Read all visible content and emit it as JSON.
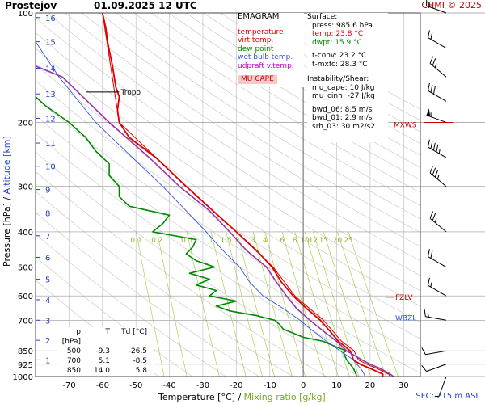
{
  "header": {
    "location": "Prostejov",
    "datetime": "01.09.2025 12 UTC",
    "credit": "CHMI © 2025"
  },
  "legend": {
    "title": "EMAGRAM",
    "items": [
      {
        "label": "temperature",
        "color": "#dd0000"
      },
      {
        "label": "virt.temp.",
        "color": "#dd0000"
      },
      {
        "label": "dew point",
        "color": "#008800"
      },
      {
        "label": "wet bulb temp.",
        "color": "#3355dd"
      },
      {
        "label": "udprafť v.temp.",
        "color": "#cc00cc"
      }
    ],
    "mu_cape_label": "MU CAPE"
  },
  "surface": {
    "title": "Surface:",
    "rows": [
      {
        "text": "press: 985.6 hPa",
        "color": "#000000"
      },
      {
        "text": "temp: 23.8 °C",
        "color": "#dd0000"
      },
      {
        "text": "dwpt: 15.9 °C",
        "color": "#008800"
      },
      {
        "text": "",
        "color": "#000000"
      },
      {
        "text": "t-conv: 23.2 °C",
        "color": "#000000"
      },
      {
        "text": "t-mxfc: 28.3 °C",
        "color": "#000000"
      }
    ],
    "instability_title": "Instability/Shear:",
    "instability_rows": [
      "mu_cape: 10 J/kg",
      "mu_cinh: -27 J/kg",
      "",
      "bwd_06: 8.5 m/s",
      "bwd_01: 2.9 m/s",
      "srh_03: 30 m2/s2"
    ]
  },
  "table": {
    "headers": [
      "p [hPa]",
      "T",
      "Td [°C]"
    ],
    "rows": [
      [
        "500",
        "-9.3",
        "-26.5"
      ],
      [
        "700",
        "5.1",
        "-8.5"
      ],
      [
        "850",
        "14.0",
        "5.8"
      ]
    ]
  },
  "axes": {
    "xlabel_main": "Temperature [°C]",
    "xlabel_sep": "/",
    "xlabel_mix": "Mixing ratio [g/kg]",
    "ylabel_main": "Pressure [hPa]",
    "ylabel_sep": "/",
    "ylabel_alt": "Altitude [km]",
    "sfc_label": "SFC: 215 m ASL"
  },
  "markers": {
    "tropo": "Tropo",
    "mxws": "MXWS",
    "fzlv": "FZLV",
    "wbzl": "WBZL"
  },
  "colors": {
    "temperature": "#dd0000",
    "dewpoint": "#008800",
    "wetbulb": "#3355dd",
    "parcel": "#9933aa",
    "altitude": "#2244cc",
    "mixing": "#99cc33",
    "grid": "#bbbbbb",
    "dry_adiabat": "#cccccc"
  },
  "chart_data": {
    "type": "line",
    "title": "",
    "x_ticks": [
      -70,
      -60,
      -50,
      -40,
      -30,
      -20,
      -10,
      0,
      10,
      20,
      30
    ],
    "xlim": [
      -80,
      35
    ],
    "y_ticks": [
      100,
      200,
      300,
      400,
      500,
      600,
      700,
      850,
      925,
      1000
    ],
    "ylim": [
      1000,
      100
    ],
    "y_scale": "log",
    "altitude_ticks_km": [
      1,
      2,
      3,
      4,
      5,
      6,
      7,
      8,
      9,
      10,
      11,
      12,
      13,
      14,
      15,
      16
    ],
    "altitude_tick_pressures": [
      900,
      795,
      700,
      615,
      540,
      470,
      410,
      355,
      306,
      264,
      228,
      195,
      167,
      142,
      120,
      103
    ],
    "mixing_ratio_labels": [
      "0.1",
      "0.2",
      "0.5",
      "1",
      "1.5",
      "2",
      "3",
      "4",
      "6",
      "8",
      "10",
      "12",
      "15",
      "20",
      "25"
    ],
    "mixing_ratio_values": [
      0.1,
      0.2,
      0.5,
      1,
      1.5,
      2,
      3,
      4,
      6,
      8,
      10,
      12,
      15,
      20,
      25
    ],
    "series": [
      {
        "name": "temperature",
        "points": [
          [
            1000,
            23.8
          ],
          [
            985,
            23.8
          ],
          [
            950,
            20
          ],
          [
            925,
            17
          ],
          [
            900,
            15
          ],
          [
            870,
            14.5
          ],
          [
            850,
            14
          ],
          [
            820,
            12
          ],
          [
            800,
            10.5
          ],
          [
            750,
            8
          ],
          [
            700,
            5.1
          ],
          [
            650,
            1
          ],
          [
            600,
            -3
          ],
          [
            550,
            -6.5
          ],
          [
            500,
            -9.3
          ],
          [
            450,
            -14
          ],
          [
            400,
            -20
          ],
          [
            350,
            -27
          ],
          [
            300,
            -35
          ],
          [
            250,
            -44
          ],
          [
            220,
            -52
          ],
          [
            200,
            -55
          ],
          [
            185,
            -55.5
          ],
          [
            170,
            -55
          ],
          [
            160,
            -56
          ],
          [
            140,
            -57
          ],
          [
            120,
            -58.5
          ],
          [
            110,
            -59
          ],
          [
            100,
            -60
          ]
        ]
      },
      {
        "name": "virt.temp.",
        "points": [
          [
            1000,
            26
          ],
          [
            985,
            25.5
          ],
          [
            950,
            22
          ],
          [
            925,
            19
          ],
          [
            900,
            16.5
          ],
          [
            850,
            15.2
          ],
          [
            800,
            11.5
          ],
          [
            700,
            6
          ],
          [
            600,
            -2.5
          ],
          [
            500,
            -9
          ],
          [
            400,
            -20
          ],
          [
            300,
            -35
          ],
          [
            200,
            -55
          ],
          [
            100,
            -60
          ]
        ]
      },
      {
        "name": "dew point",
        "points": [
          [
            1000,
            15.9
          ],
          [
            985,
            15.8
          ],
          [
            950,
            15
          ],
          [
            925,
            14
          ],
          [
            900,
            13
          ],
          [
            860,
            12
          ],
          [
            850,
            13
          ],
          [
            830,
            10
          ],
          [
            800,
            6
          ],
          [
            780,
            0
          ],
          [
            760,
            -3
          ],
          [
            740,
            -6
          ],
          [
            720,
            -7
          ],
          [
            700,
            -8.5
          ],
          [
            680,
            -14
          ],
          [
            660,
            -22
          ],
          [
            640,
            -26
          ],
          [
            620,
            -20
          ],
          [
            600,
            -28
          ],
          [
            580,
            -26
          ],
          [
            560,
            -32
          ],
          [
            540,
            -28
          ],
          [
            520,
            -34
          ],
          [
            500,
            -26.5
          ],
          [
            480,
            -32
          ],
          [
            460,
            -35
          ],
          [
            440,
            -33
          ],
          [
            420,
            -32
          ],
          [
            400,
            -45
          ],
          [
            380,
            -42
          ],
          [
            360,
            -40
          ],
          [
            350,
            -46
          ],
          [
            340,
            -52
          ],
          [
            320,
            -55
          ],
          [
            300,
            -55
          ],
          [
            280,
            -58
          ],
          [
            260,
            -58
          ],
          [
            240,
            -62
          ],
          [
            220,
            -65
          ],
          [
            200,
            -70
          ],
          [
            180,
            -77
          ],
          [
            170,
            -80
          ]
        ]
      },
      {
        "name": "wet bulb temp.",
        "points": [
          [
            1000,
            18.5
          ],
          [
            985,
            18.2
          ],
          [
            950,
            17.2
          ],
          [
            925,
            16
          ],
          [
            900,
            15
          ],
          [
            850,
            11
          ],
          [
            800,
            7
          ],
          [
            750,
            3
          ],
          [
            700,
            -1
          ],
          [
            650,
            -6
          ],
          [
            600,
            -12
          ],
          [
            550,
            -16
          ],
          [
            500,
            -19
          ],
          [
            450,
            -24
          ],
          [
            400,
            -29
          ],
          [
            350,
            -35
          ],
          [
            300,
            -42
          ],
          [
            250,
            -51
          ],
          [
            200,
            -62
          ],
          [
            150,
            -73
          ],
          [
            120,
            -80
          ]
        ]
      },
      {
        "name": "udprafť v.temp.",
        "points": [
          [
            1000,
            27
          ],
          [
            985,
            26
          ],
          [
            950,
            23
          ],
          [
            925,
            20
          ],
          [
            900,
            17.5
          ],
          [
            850,
            13
          ],
          [
            800,
            10
          ],
          [
            750,
            6
          ],
          [
            700,
            2
          ],
          [
            650,
            -2
          ],
          [
            600,
            -5
          ],
          [
            550,
            -8
          ],
          [
            500,
            -11
          ],
          [
            450,
            -17
          ],
          [
            400,
            -22
          ],
          [
            350,
            -28
          ],
          [
            300,
            -37
          ],
          [
            250,
            -46
          ],
          [
            200,
            -58
          ],
          [
            150,
            -72
          ],
          [
            140,
            -80
          ]
        ]
      }
    ],
    "tropopause_hpa": 165,
    "mxws_hpa": 200,
    "fzlv_hpa": 605,
    "wbzl_hpa": 690,
    "wind_barbs": [
      {
        "p": 1000,
        "dir": 200,
        "kt": 5
      },
      {
        "p": 925,
        "dir": 250,
        "kt": 10
      },
      {
        "p": 850,
        "dir": 260,
        "kt": 10
      },
      {
        "p": 700,
        "dir": 280,
        "kt": 15
      },
      {
        "p": 600,
        "dir": 300,
        "kt": 15
      },
      {
        "p": 500,
        "dir": 300,
        "kt": 20
      },
      {
        "p": 400,
        "dir": 310,
        "kt": 25
      },
      {
        "p": 300,
        "dir": 310,
        "kt": 35
      },
      {
        "p": 250,
        "dir": 300,
        "kt": 45
      },
      {
        "p": 200,
        "dir": 290,
        "kt": 55
      },
      {
        "p": 175,
        "dir": 300,
        "kt": 30
      },
      {
        "p": 150,
        "dir": 310,
        "kt": 25
      },
      {
        "p": 125,
        "dir": 300,
        "kt": 20
      },
      {
        "p": 100,
        "dir": 290,
        "kt": 15
      }
    ]
  }
}
